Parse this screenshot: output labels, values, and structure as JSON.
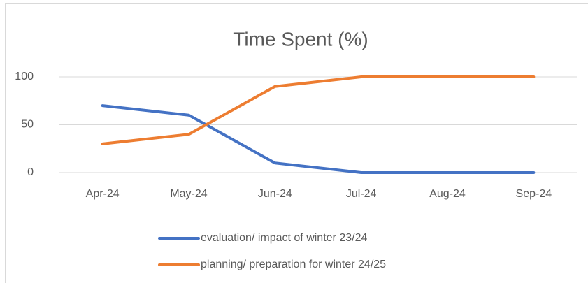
{
  "chart_data": {
    "type": "line",
    "title": "Time Spent (%)",
    "categories": [
      "Apr-24",
      "May-24",
      "Jun-24",
      "Jul-24",
      "Aug-24",
      "Sep-24"
    ],
    "series": [
      {
        "name": "evaluation/ impact of winter 23/24",
        "color": "#4472c4",
        "values": [
          70,
          60,
          10,
          0,
          0,
          0
        ]
      },
      {
        "name": "planning/ preparation for winter 24/25",
        "color": "#ed7d31",
        "values": [
          30,
          40,
          90,
          100,
          100,
          100
        ]
      }
    ],
    "ylim": [
      0,
      100
    ],
    "yticks": [
      0,
      50,
      100
    ],
    "grid": true,
    "legend": "bottom"
  }
}
